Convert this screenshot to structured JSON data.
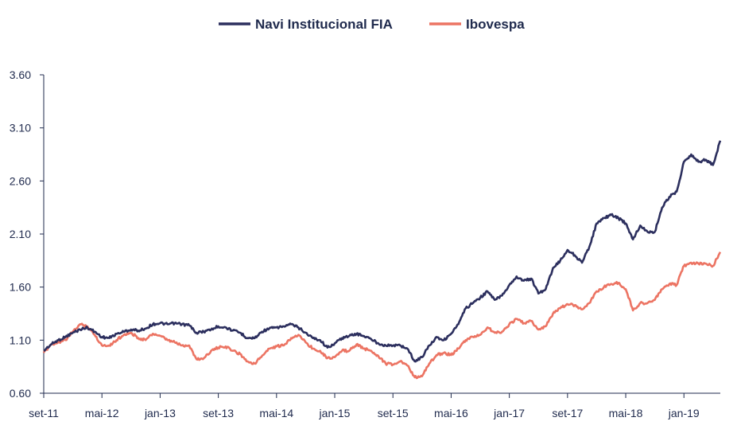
{
  "chart_data": {
    "type": "line",
    "title": "",
    "xlabel": "",
    "ylabel": "",
    "ylim": [
      0.6,
      3.6
    ],
    "y_ticks": [
      "0.60",
      "1.10",
      "1.60",
      "2.10",
      "2.60",
      "3.10",
      "3.60"
    ],
    "x_ticks": [
      "set-11",
      "mai-12",
      "jan-13",
      "set-13",
      "mai-14",
      "jan-15",
      "set-15",
      "mai-16",
      "jan-17",
      "set-17",
      "mai-18",
      "jan-19"
    ],
    "x_range": [
      "set-11",
      "jun-19"
    ],
    "grid": false,
    "legend_position": "top-center",
    "colors": {
      "navi": "#2c2f5e",
      "ibovespa": "#ec7463",
      "axis": "#1f2a4d"
    },
    "series": [
      {
        "name": "Navi Institucional FIA",
        "points": [
          [
            "set-11",
            1.0
          ],
          [
            "out-11",
            1.06
          ],
          [
            "nov-11",
            1.1
          ],
          [
            "dez-11",
            1.13
          ],
          [
            "jan-12",
            1.17
          ],
          [
            "fev-12",
            1.2
          ],
          [
            "mar-12",
            1.22
          ],
          [
            "abr-12",
            1.18
          ],
          [
            "mai-12",
            1.13
          ],
          [
            "jun-12",
            1.12
          ],
          [
            "jul-12",
            1.16
          ],
          [
            "ago-12",
            1.18
          ],
          [
            "set-12",
            1.2
          ],
          [
            "out-12",
            1.19
          ],
          [
            "nov-12",
            1.21
          ],
          [
            "dez-12",
            1.25
          ],
          [
            "jan-13",
            1.26
          ],
          [
            "fev-13",
            1.25
          ],
          [
            "mar-13",
            1.26
          ],
          [
            "abr-13",
            1.25
          ],
          [
            "mai-13",
            1.24
          ],
          [
            "jun-13",
            1.17
          ],
          [
            "jul-13",
            1.18
          ],
          [
            "ago-13",
            1.2
          ],
          [
            "set-13",
            1.23
          ],
          [
            "out-13",
            1.22
          ],
          [
            "nov-13",
            1.19
          ],
          [
            "dez-13",
            1.17
          ],
          [
            "jan-14",
            1.12
          ],
          [
            "fev-14",
            1.12
          ],
          [
            "mar-14",
            1.18
          ],
          [
            "abr-14",
            1.21
          ],
          [
            "mai-14",
            1.22
          ],
          [
            "jun-14",
            1.23
          ],
          [
            "jul-14",
            1.25
          ],
          [
            "ago-14",
            1.22
          ],
          [
            "set-14",
            1.17
          ],
          [
            "out-14",
            1.12
          ],
          [
            "nov-14",
            1.1
          ],
          [
            "dez-14",
            1.03
          ],
          [
            "jan-15",
            1.07
          ],
          [
            "fev-15",
            1.12
          ],
          [
            "mar-15",
            1.14
          ],
          [
            "abr-15",
            1.16
          ],
          [
            "mai-15",
            1.14
          ],
          [
            "jun-15",
            1.11
          ],
          [
            "jul-15",
            1.07
          ],
          [
            "ago-15",
            1.05
          ],
          [
            "set-15",
            1.05
          ],
          [
            "out-15",
            1.05
          ],
          [
            "nov-15",
            1.02
          ],
          [
            "dez-15",
            0.9
          ],
          [
            "jan-16",
            0.94
          ],
          [
            "fev-16",
            1.05
          ],
          [
            "mar-16",
            1.13
          ],
          [
            "abr-16",
            1.1
          ],
          [
            "mai-16",
            1.16
          ],
          [
            "jun-16",
            1.25
          ],
          [
            "jul-16",
            1.4
          ],
          [
            "ago-16",
            1.45
          ],
          [
            "set-16",
            1.5
          ],
          [
            "out-16",
            1.56
          ],
          [
            "nov-16",
            1.48
          ],
          [
            "dez-16",
            1.52
          ],
          [
            "jan-17",
            1.62
          ],
          [
            "fev-17",
            1.7
          ],
          [
            "mar-17",
            1.66
          ],
          [
            "abr-17",
            1.68
          ],
          [
            "mai-17",
            1.54
          ],
          [
            "jun-17",
            1.58
          ],
          [
            "jul-17",
            1.78
          ],
          [
            "ago-17",
            1.85
          ],
          [
            "set-17",
            1.95
          ],
          [
            "out-17",
            1.9
          ],
          [
            "nov-17",
            1.83
          ],
          [
            "dez-17",
            1.98
          ],
          [
            "jan-18",
            2.2
          ],
          [
            "fev-18",
            2.25
          ],
          [
            "mar-18",
            2.28
          ],
          [
            "abr-18",
            2.25
          ],
          [
            "mai-18",
            2.2
          ],
          [
            "jun-18",
            2.05
          ],
          [
            "jul-18",
            2.18
          ],
          [
            "ago-18",
            2.12
          ],
          [
            "set-18",
            2.12
          ],
          [
            "out-18",
            2.35
          ],
          [
            "nov-18",
            2.45
          ],
          [
            "dez-18",
            2.5
          ],
          [
            "jan-19",
            2.78
          ],
          [
            "fev-19",
            2.85
          ],
          [
            "mar-19",
            2.78
          ],
          [
            "abr-19",
            2.8
          ],
          [
            "mai-19",
            2.75
          ],
          [
            "jun-19",
            2.98
          ]
        ]
      },
      {
        "name": "Ibovespa",
        "points": [
          [
            "set-11",
            0.98
          ],
          [
            "out-11",
            1.06
          ],
          [
            "nov-11",
            1.08
          ],
          [
            "dez-11",
            1.1
          ],
          [
            "jan-12",
            1.18
          ],
          [
            "fev-12",
            1.25
          ],
          [
            "mar-12",
            1.23
          ],
          [
            "abr-12",
            1.15
          ],
          [
            "mai-12",
            1.05
          ],
          [
            "jun-12",
            1.05
          ],
          [
            "jul-12",
            1.1
          ],
          [
            "ago-12",
            1.15
          ],
          [
            "set-12",
            1.17
          ],
          [
            "out-12",
            1.12
          ],
          [
            "nov-12",
            1.1
          ],
          [
            "dez-12",
            1.16
          ],
          [
            "jan-13",
            1.14
          ],
          [
            "fev-13",
            1.1
          ],
          [
            "mar-13",
            1.08
          ],
          [
            "abr-13",
            1.05
          ],
          [
            "mai-13",
            1.05
          ],
          [
            "jun-13",
            0.92
          ],
          [
            "jul-13",
            0.93
          ],
          [
            "ago-13",
            1.0
          ],
          [
            "set-13",
            1.03
          ],
          [
            "out-13",
            1.04
          ],
          [
            "nov-13",
            1.0
          ],
          [
            "dez-13",
            0.97
          ],
          [
            "jan-14",
            0.9
          ],
          [
            "fev-14",
            0.88
          ],
          [
            "mar-14",
            0.95
          ],
          [
            "abr-14",
            1.02
          ],
          [
            "mai-14",
            1.04
          ],
          [
            "jun-14",
            1.05
          ],
          [
            "jul-14",
            1.12
          ],
          [
            "ago-14",
            1.15
          ],
          [
            "set-14",
            1.08
          ],
          [
            "out-14",
            1.02
          ],
          [
            "nov-14",
            1.0
          ],
          [
            "dez-14",
            0.93
          ],
          [
            "jan-15",
            0.94
          ],
          [
            "fev-15",
            1.0
          ],
          [
            "mar-15",
            1.0
          ],
          [
            "abr-15",
            1.06
          ],
          [
            "mai-15",
            1.02
          ],
          [
            "jun-15",
            1.0
          ],
          [
            "jul-15",
            0.95
          ],
          [
            "ago-15",
            0.88
          ],
          [
            "set-15",
            0.87
          ],
          [
            "out-15",
            0.9
          ],
          [
            "nov-15",
            0.86
          ],
          [
            "dez-15",
            0.75
          ],
          [
            "jan-16",
            0.76
          ],
          [
            "fev-16",
            0.88
          ],
          [
            "mar-16",
            0.96
          ],
          [
            "abr-16",
            0.98
          ],
          [
            "mai-16",
            0.96
          ],
          [
            "jun-16",
            1.02
          ],
          [
            "jul-16",
            1.1
          ],
          [
            "ago-16",
            1.13
          ],
          [
            "set-16",
            1.15
          ],
          [
            "out-16",
            1.22
          ],
          [
            "nov-16",
            1.17
          ],
          [
            "dez-16",
            1.18
          ],
          [
            "jan-17",
            1.25
          ],
          [
            "fev-17",
            1.3
          ],
          [
            "mar-17",
            1.26
          ],
          [
            "abr-17",
            1.28
          ],
          [
            "mai-17",
            1.2
          ],
          [
            "jun-17",
            1.23
          ],
          [
            "jul-17",
            1.35
          ],
          [
            "ago-17",
            1.4
          ],
          [
            "set-17",
            1.44
          ],
          [
            "out-17",
            1.43
          ],
          [
            "nov-17",
            1.39
          ],
          [
            "dez-17",
            1.45
          ],
          [
            "jan-18",
            1.56
          ],
          [
            "fev-18",
            1.6
          ],
          [
            "mar-18",
            1.63
          ],
          [
            "abr-18",
            1.64
          ],
          [
            "mai-18",
            1.58
          ],
          [
            "jun-18",
            1.38
          ],
          [
            "jul-18",
            1.45
          ],
          [
            "ago-18",
            1.45
          ],
          [
            "set-18",
            1.48
          ],
          [
            "out-18",
            1.58
          ],
          [
            "nov-18",
            1.63
          ],
          [
            "dez-18",
            1.62
          ],
          [
            "jan-19",
            1.8
          ],
          [
            "fev-19",
            1.83
          ],
          [
            "mar-19",
            1.82
          ],
          [
            "abr-19",
            1.82
          ],
          [
            "mai-19",
            1.8
          ],
          [
            "jun-19",
            1.93
          ]
        ]
      }
    ]
  }
}
